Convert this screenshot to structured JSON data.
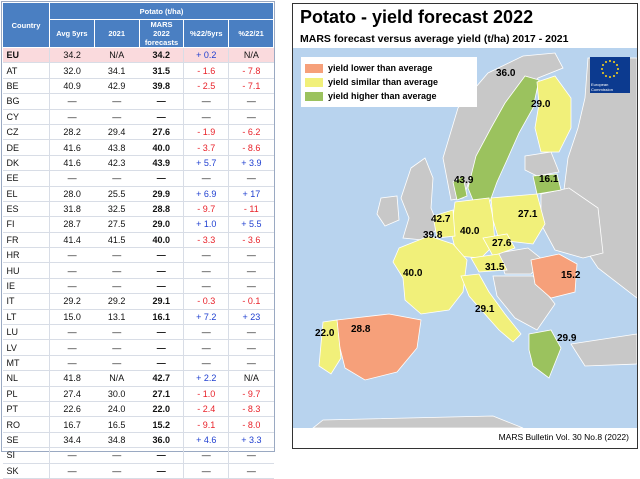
{
  "table": {
    "header_group": "Potato (t/ha)",
    "col_country": "Country",
    "col_avg": "Avg 5yrs",
    "col_2021": "2021",
    "col_mars_1": "MARS",
    "col_mars_2": "2022",
    "col_mars_3": "forecasts",
    "col_p5": "%22/5yrs",
    "col_p21": "%22/21",
    "rows": [
      {
        "c": "EU",
        "avg": "34.2",
        "y21": "N/A",
        "mars": "34.2",
        "p5": "+ 0.2",
        "p21": "N/A",
        "p5s": "pos",
        "p21s": ""
      },
      {
        "c": "AT",
        "avg": "32.0",
        "y21": "34.1",
        "mars": "31.5",
        "p5": "- 1.6",
        "p21": "- 7.8",
        "p5s": "neg",
        "p21s": "neg"
      },
      {
        "c": "BE",
        "avg": "40.9",
        "y21": "42.9",
        "mars": "39.8",
        "p5": "- 2.5",
        "p21": "- 7.1",
        "p5s": "neg",
        "p21s": "neg"
      },
      {
        "c": "BG",
        "avg": "—",
        "y21": "—",
        "mars": "—",
        "p5": "—",
        "p21": "—",
        "p5s": "",
        "p21s": ""
      },
      {
        "c": "CY",
        "avg": "—",
        "y21": "—",
        "mars": "—",
        "p5": "—",
        "p21": "—",
        "p5s": "",
        "p21s": ""
      },
      {
        "c": "CZ",
        "avg": "28.2",
        "y21": "29.4",
        "mars": "27.6",
        "p5": "- 1.9",
        "p21": "- 6.2",
        "p5s": "neg",
        "p21s": "neg"
      },
      {
        "c": "DE",
        "avg": "41.6",
        "y21": "43.8",
        "mars": "40.0",
        "p5": "- 3.7",
        "p21": "- 8.6",
        "p5s": "neg",
        "p21s": "neg"
      },
      {
        "c": "DK",
        "avg": "41.6",
        "y21": "42.3",
        "mars": "43.9",
        "p5": "+ 5.7",
        "p21": "+ 3.9",
        "p5s": "pos",
        "p21s": "pos"
      },
      {
        "c": "EE",
        "avg": "—",
        "y21": "—",
        "mars": "—",
        "p5": "—",
        "p21": "—",
        "p5s": "",
        "p21s": ""
      },
      {
        "c": "EL",
        "avg": "28.0",
        "y21": "25.5",
        "mars": "29.9",
        "p5": "+ 6.9",
        "p21": "+ 17",
        "p5s": "pos",
        "p21s": "pos"
      },
      {
        "c": "ES",
        "avg": "31.8",
        "y21": "32.5",
        "mars": "28.8",
        "p5": "- 9.7",
        "p21": "- 11",
        "p5s": "neg",
        "p21s": "neg"
      },
      {
        "c": "FI",
        "avg": "28.7",
        "y21": "27.5",
        "mars": "29.0",
        "p5": "+ 1.0",
        "p21": "+ 5.5",
        "p5s": "pos",
        "p21s": "pos"
      },
      {
        "c": "FR",
        "avg": "41.4",
        "y21": "41.5",
        "mars": "40.0",
        "p5": "- 3.3",
        "p21": "- 3.6",
        "p5s": "neg",
        "p21s": "neg"
      },
      {
        "c": "HR",
        "avg": "—",
        "y21": "—",
        "mars": "—",
        "p5": "—",
        "p21": "—",
        "p5s": "",
        "p21s": ""
      },
      {
        "c": "HU",
        "avg": "—",
        "y21": "—",
        "mars": "—",
        "p5": "—",
        "p21": "—",
        "p5s": "",
        "p21s": ""
      },
      {
        "c": "IE",
        "avg": "—",
        "y21": "—",
        "mars": "—",
        "p5": "—",
        "p21": "—",
        "p5s": "",
        "p21s": ""
      },
      {
        "c": "IT",
        "avg": "29.2",
        "y21": "29.2",
        "mars": "29.1",
        "p5": "- 0.3",
        "p21": "- 0.1",
        "p5s": "neg",
        "p21s": "neg"
      },
      {
        "c": "LT",
        "avg": "15.0",
        "y21": "13.1",
        "mars": "16.1",
        "p5": "+ 7.2",
        "p21": "+ 23",
        "p5s": "pos",
        "p21s": "pos"
      },
      {
        "c": "LU",
        "avg": "—",
        "y21": "—",
        "mars": "—",
        "p5": "—",
        "p21": "—",
        "p5s": "",
        "p21s": ""
      },
      {
        "c": "LV",
        "avg": "—",
        "y21": "—",
        "mars": "—",
        "p5": "—",
        "p21": "—",
        "p5s": "",
        "p21s": ""
      },
      {
        "c": "MT",
        "avg": "—",
        "y21": "—",
        "mars": "—",
        "p5": "—",
        "p21": "—",
        "p5s": "",
        "p21s": ""
      },
      {
        "c": "NL",
        "avg": "41.8",
        "y21": "N/A",
        "mars": "42.7",
        "p5": "+ 2.2",
        "p21": "N/A",
        "p5s": "pos",
        "p21s": ""
      },
      {
        "c": "PL",
        "avg": "27.4",
        "y21": "30.0",
        "mars": "27.1",
        "p5": "- 1.0",
        "p21": "- 9.7",
        "p5s": "neg",
        "p21s": "neg"
      },
      {
        "c": "PT",
        "avg": "22.6",
        "y21": "24.0",
        "mars": "22.0",
        "p5": "- 2.4",
        "p21": "- 8.3",
        "p5s": "neg",
        "p21s": "neg"
      },
      {
        "c": "RO",
        "avg": "16.7",
        "y21": "16.5",
        "mars": "15.2",
        "p5": "- 9.1",
        "p21": "- 8.0",
        "p5s": "neg",
        "p21s": "neg"
      },
      {
        "c": "SE",
        "avg": "34.4",
        "y21": "34.8",
        "mars": "36.0",
        "p5": "+ 4.6",
        "p21": "+ 3.3",
        "p5s": "pos",
        "p21s": "pos"
      },
      {
        "c": "SI",
        "avg": "—",
        "y21": "—",
        "mars": "—",
        "p5": "—",
        "p21": "—",
        "p5s": "",
        "p21s": ""
      },
      {
        "c": "SK",
        "avg": "—",
        "y21": "—",
        "mars": "—",
        "p5": "—",
        "p21": "—",
        "p5s": "",
        "p21s": ""
      }
    ]
  },
  "map": {
    "title": "Potato - yield forecast 2022",
    "subtitle": "MARS forecast versus average yield (t/ha) 2017 - 2021",
    "legend": [
      {
        "label": "yield lower than average",
        "color": "#f6a07a"
      },
      {
        "label": "yield similar than average",
        "color": "#f1f07a"
      },
      {
        "label": "yield higher than average",
        "color": "#9bc25e"
      }
    ],
    "colors": {
      "sea": "#b8d3ee",
      "nodata": "#c8c8c8",
      "lower": "#f6a07a",
      "similar": "#f1f07a",
      "higher": "#9bc25e",
      "border": "#ffffff"
    },
    "flag_text": "European Commission",
    "values": {
      "SE": "36.0",
      "FI": "29.0",
      "DK": "43.9",
      "LT": "16.1",
      "NL": "42.7",
      "BE": "39.8",
      "DE": "40.0",
      "PL": "27.1",
      "CZ": "27.6",
      "AT": "31.5",
      "FR": "40.0",
      "RO": "15.2",
      "IT": "29.1",
      "PT": "22.0",
      "ES": "28.8",
      "EL": "29.9"
    },
    "source": "MARS Bulletin Vol. 30 No.8 (2022)"
  }
}
